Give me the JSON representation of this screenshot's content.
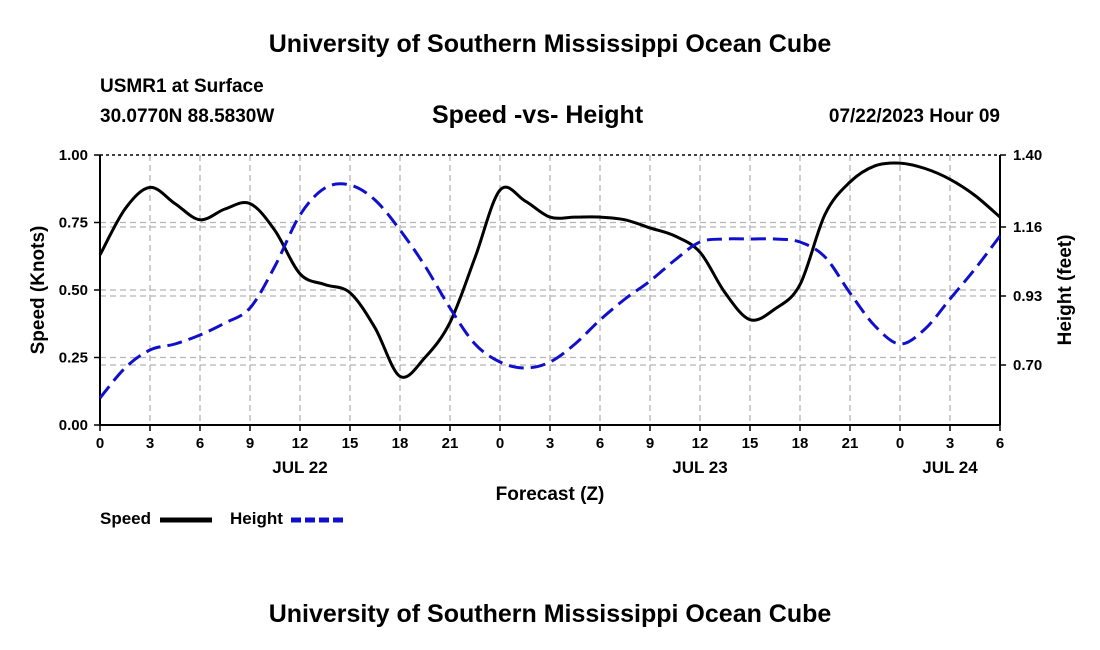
{
  "page": {
    "title": "University of Southern Mississippi Ocean Cube",
    "footer_title": "University of Southern Mississippi Ocean Cube"
  },
  "station": {
    "name": "USMR1 at Surface",
    "coords": "30.0770N  88.5830W",
    "datetime": "07/22/2023 Hour 09"
  },
  "colors": {
    "speed": "#000000",
    "height": "#1010cc",
    "grid": "#b4b4b4"
  },
  "legend": {
    "speed_label": "Speed",
    "height_label": "Height"
  },
  "chart_data": {
    "type": "line",
    "title": "Speed -vs- Height",
    "xlabel": "Forecast (Z)",
    "ylabel": "Speed (Knots)",
    "y2label": "Height (feet)",
    "xlim": [
      0,
      54
    ],
    "ylim": [
      0,
      1.0
    ],
    "y2lim": [
      0.5,
      1.4
    ],
    "x_tick_values": [
      0,
      3,
      6,
      9,
      12,
      15,
      18,
      21,
      24,
      27,
      30,
      33,
      36,
      39,
      42,
      45,
      48,
      51,
      54
    ],
    "x_tick_labels": [
      "0",
      "3",
      "6",
      "9",
      "12",
      "15",
      "18",
      "21",
      "0",
      "3",
      "6",
      "9",
      "12",
      "15",
      "18",
      "21",
      "0",
      "3",
      "6"
    ],
    "date_labels": [
      {
        "x": 12,
        "label": "JUL 22"
      },
      {
        "x": 36,
        "label": "JUL 23"
      },
      {
        "x": 51,
        "label": "JUL 24"
      }
    ],
    "y_ticks": [
      0.0,
      0.25,
      0.5,
      0.75,
      1.0
    ],
    "y_tick_labels": [
      "0.00",
      "0.25",
      "0.50",
      "0.75",
      "1.00"
    ],
    "y2_ticks": [
      0.7,
      0.93,
      1.16,
      1.4
    ],
    "y2_tick_labels": [
      "0.70",
      "0.93",
      "1.16",
      "1.40"
    ],
    "series": [
      {
        "name": "Speed",
        "axis": "left",
        "style": "solid",
        "x": [
          0,
          1.5,
          3,
          4.5,
          6,
          7.5,
          9,
          10.5,
          12,
          13.5,
          15,
          16.5,
          18,
          19.5,
          21,
          22.5,
          24,
          25.5,
          27,
          28.5,
          30,
          31.5,
          33,
          34.5,
          36,
          37.5,
          39,
          40.5,
          42,
          43.5,
          45,
          46.5,
          48,
          49.5,
          51,
          52.5,
          54
        ],
        "values": [
          0.63,
          0.8,
          0.88,
          0.82,
          0.76,
          0.8,
          0.82,
          0.72,
          0.56,
          0.52,
          0.49,
          0.36,
          0.18,
          0.25,
          0.38,
          0.62,
          0.87,
          0.83,
          0.77,
          0.77,
          0.77,
          0.76,
          0.73,
          0.7,
          0.64,
          0.49,
          0.39,
          0.43,
          0.52,
          0.78,
          0.9,
          0.96,
          0.97,
          0.95,
          0.91,
          0.85,
          0.77
        ]
      },
      {
        "name": "Height",
        "axis": "right",
        "style": "dashed",
        "x": [
          0,
          1.5,
          3,
          4.5,
          6,
          7.5,
          9,
          10.5,
          12,
          13.5,
          15,
          16.5,
          18,
          19.5,
          21,
          22.5,
          24,
          25.5,
          27,
          28.5,
          30,
          31.5,
          33,
          34.5,
          36,
          37.5,
          39,
          40.5,
          42,
          43.5,
          45,
          46.5,
          48,
          49.5,
          51,
          52.5,
          54
        ],
        "values": [
          0.59,
          0.69,
          0.75,
          0.77,
          0.8,
          0.84,
          0.89,
          1.03,
          1.2,
          1.29,
          1.3,
          1.25,
          1.15,
          1.03,
          0.89,
          0.77,
          0.71,
          0.69,
          0.71,
          0.77,
          0.85,
          0.92,
          0.98,
          1.05,
          1.11,
          1.12,
          1.12,
          1.12,
          1.11,
          1.06,
          0.94,
          0.83,
          0.77,
          0.82,
          0.92,
          1.02,
          1.13
        ]
      }
    ]
  }
}
